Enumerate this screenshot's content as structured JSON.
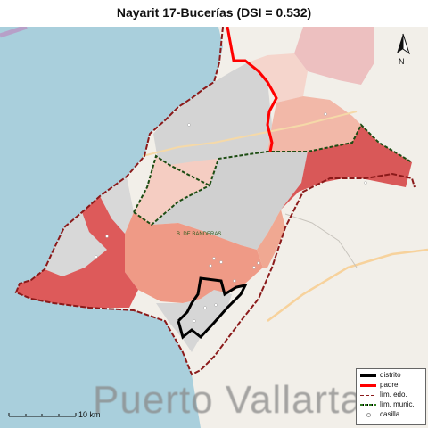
{
  "title": "Nayarit 17-Bucerías (DSI = 0.532)",
  "north_arrow": {
    "label": "N",
    "icon": "north-arrow-icon"
  },
  "scale_bar": {
    "label": "10 km"
  },
  "map_labels": {
    "bay": "B. DE BANDERAS",
    "city": "Puerto Vallarta"
  },
  "legend": {
    "items": [
      {
        "label": "distrito",
        "color": "#000000",
        "style": "solid"
      },
      {
        "label": "padre",
        "color": "#ff0000",
        "style": "solid"
      },
      {
        "label": "lím. edo.",
        "color": "#8b1a1a",
        "style": "dashed"
      },
      {
        "label": "lím. munic.",
        "color": "#2e7d1f",
        "style": "dashed"
      },
      {
        "label": "casilla",
        "color": "#999999",
        "style": "point"
      }
    ]
  },
  "colors": {
    "sea": "#a9cfdc",
    "land": "#f2efe9",
    "district_outline": "#000000",
    "parent_outline": "#ff0000",
    "state_limit": "#8b1a1a",
    "municipal_limit": "#2e7d1f",
    "section_high": "#dd5a5a",
    "section_mid": "#ef9a86",
    "section_low": "#f5cdc2",
    "section_none": "#d4d4d4"
  }
}
